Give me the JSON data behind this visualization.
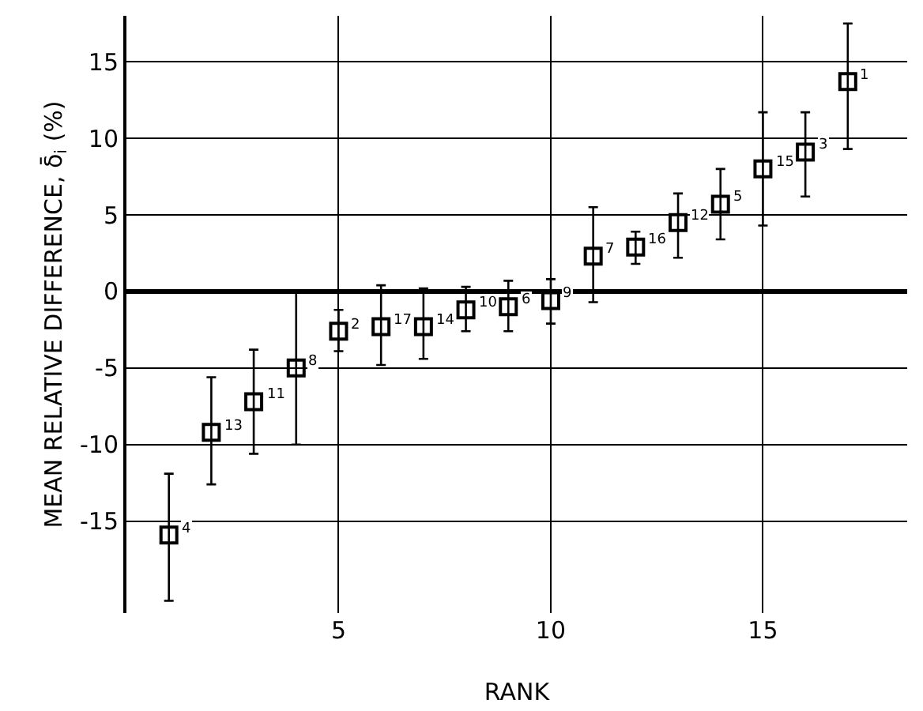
{
  "chart_data": {
    "type": "scatter",
    "xlabel": "RANK",
    "ylabel": "MEAN RELATIVE DIFFERENCE, δ̄$_{i}$ (%)",
    "x": [
      1,
      2,
      3,
      4,
      5,
      6,
      7,
      8,
      9,
      10,
      11,
      12,
      13,
      14,
      15,
      16,
      17
    ],
    "series": [
      {
        "color": "#000000",
        "values": [
          -15.9,
          -9.2,
          -7.2,
          -5.0,
          -2.6,
          -2.3,
          -2.3,
          -1.2,
          -1.0,
          -0.6,
          2.3,
          2.9,
          4.5,
          5.7,
          8.0,
          9.1,
          13.7
        ],
        "errors": [
          [
            -20.2,
            -11.9
          ],
          [
            -12.6,
            -5.6
          ],
          [
            -10.6,
            -3.8
          ],
          [
            -10.0,
            0
          ],
          [
            -3.9,
            -1.2
          ],
          [
            -4.8,
            0.4
          ],
          [
            -4.4,
            0.2
          ],
          [
            -2.6,
            0.3
          ],
          [
            -2.6,
            0.7
          ],
          [
            -2.1,
            0.8
          ],
          [
            -0.7,
            5.5
          ],
          [
            1.8,
            3.9
          ],
          [
            2.2,
            6.4
          ],
          [
            3.4,
            8.0
          ],
          [
            4.3,
            11.7
          ],
          [
            6.2,
            11.7
          ],
          [
            9.3,
            17.5
          ]
        ]
      }
    ],
    "marker": "square",
    "xlim": [
      0,
      18.4
    ],
    "xticks": [
      5,
      10,
      15
    ],
    "ylim": [
      -21,
      18
    ],
    "yticks": [
      -15,
      -10,
      -5,
      0,
      5,
      10,
      15
    ],
    "grid": true,
    "ref_lines": [
      {
        "axis": "y",
        "value": 0,
        "color": "#000000"
      }
    ],
    "annotations": [
      {
        "text": "4",
        "x": 1,
        "y": -15.9
      },
      {
        "text": "13",
        "x": 2,
        "y": -9.2
      },
      {
        "text": "11",
        "x": 3,
        "y": -7.2
      },
      {
        "text": "8",
        "x": 4,
        "y": -5.0
      },
      {
        "text": "2",
        "x": 5,
        "y": -2.6
      },
      {
        "text": "17",
        "x": 6,
        "y": -2.3
      },
      {
        "text": "14",
        "x": 7,
        "y": -2.3
      },
      {
        "text": "10",
        "x": 8,
        "y": -1.2
      },
      {
        "text": "6",
        "x": 9,
        "y": -1.0
      },
      {
        "text": "9",
        "x": 10,
        "y": -0.6
      },
      {
        "text": "7",
        "x": 11,
        "y": 2.3
      },
      {
        "text": "16",
        "x": 12,
        "y": 2.9
      },
      {
        "text": "12",
        "x": 13,
        "y": 4.5
      },
      {
        "text": "5",
        "x": 14,
        "y": 5.7
      },
      {
        "text": "15",
        "x": 15,
        "y": 8.0
      },
      {
        "text": "3",
        "x": 16,
        "y": 9.1
      },
      {
        "text": "1",
        "x": 17,
        "y": 13.7
      }
    ]
  }
}
